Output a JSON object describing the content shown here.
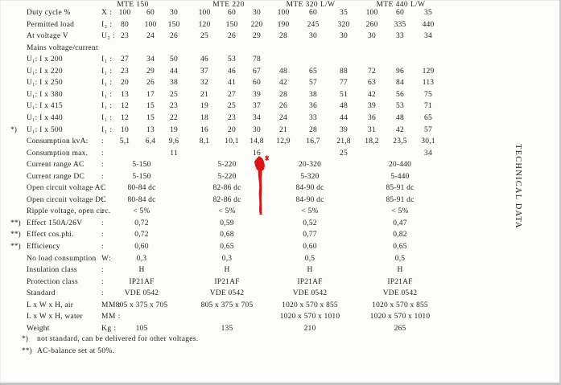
{
  "sidebar": {
    "label": "TECHNICAL DATA"
  },
  "table": {
    "groups": [
      "MTE 150",
      "MTE 220",
      "MTE 320 L/W",
      "MTE 440 L/W"
    ],
    "rows": [
      {
        "label": "Duty cycle %",
        "symbol": "X :",
        "cols": [
          "100",
          "60",
          "30",
          "100",
          "60",
          "30",
          "100",
          "60",
          "35",
          "100",
          "60",
          "35"
        ]
      },
      {
        "label": "Permitted load",
        "symbol": "I₂ :",
        "cols": [
          "80",
          "100",
          "150",
          "120",
          "150",
          "220",
          "190",
          "245",
          "320",
          "260",
          "335",
          "440"
        ]
      },
      {
        "label": "At voltage V",
        "symbol": "U₂ :",
        "cols": [
          "23",
          "24",
          "26",
          "25",
          "26",
          "29",
          "28",
          "30",
          "30",
          "30",
          "33",
          "34"
        ]
      },
      {
        "label": "Mains voltage/current",
        "symbol": ""
      },
      {
        "label": "U₁: I x 200",
        "symbol": "I₁ :",
        "cols": [
          "27",
          "34",
          "50",
          "46",
          "53",
          "78",
          "",
          "",
          "",
          "",
          "",
          ""
        ]
      },
      {
        "label": "U₁: I x 220",
        "symbol": "I₁ :",
        "cols": [
          "23",
          "29",
          "44",
          "37",
          "46",
          "67",
          "48",
          "65",
          "88",
          "72",
          "96",
          "129"
        ]
      },
      {
        "label": "U₁: I x 250",
        "symbol": "I₁ :",
        "cols": [
          "20",
          "26",
          "38",
          "32",
          "41",
          "60",
          "42",
          "57",
          "77",
          "63",
          "84",
          "113"
        ]
      },
      {
        "label": "U₁: I x 380",
        "symbol": "I₁ :",
        "cols": [
          "13",
          "17",
          "25",
          "21",
          "27",
          "39",
          "28",
          "38",
          "51",
          "42",
          "56",
          "75"
        ]
      },
      {
        "label": "U₁: I x 415",
        "symbol": "I₁ :",
        "cols": [
          "12",
          "15",
          "23",
          "19",
          "25",
          "37",
          "26",
          "36",
          "48",
          "39",
          "53",
          "71"
        ]
      },
      {
        "label": "U₁: I x 440",
        "symbol": "I₁ :",
        "cols": [
          "12",
          "15",
          "22",
          "18",
          "23",
          "34",
          "24",
          "33",
          "44",
          "36",
          "48",
          "65"
        ]
      },
      {
        "prefix": "*)",
        "label": "U₁: I x 500",
        "symbol": "I₁ :",
        "cols": [
          "10",
          "13",
          "19",
          "16",
          "20",
          "30",
          "21",
          "28",
          "39",
          "31",
          "42",
          "57"
        ]
      },
      {
        "label": "Consumption kvA:",
        "symbol": ":",
        "cols": [
          "5,1",
          "6,4",
          "9,6",
          "8,1",
          "10,1",
          "14,8",
          "12,9",
          "16,7",
          "21,8",
          "18,2",
          "23,5",
          "30,1"
        ]
      },
      {
        "label": "Consumption max.",
        "symbol": ":",
        "cols": [
          "",
          "",
          "11",
          "",
          "",
          "16",
          "",
          "",
          "25",
          "",
          "",
          "34"
        ]
      },
      {
        "label": "Current range AC",
        "symbol": ":",
        "groupvals": [
          "5-150",
          "5-220",
          "20-320",
          "20-440"
        ]
      },
      {
        "label": "Current range DC",
        "symbol": ":",
        "groupvals": [
          "5-150",
          "5-220",
          "5-320",
          "5-440"
        ]
      },
      {
        "label": "Open circuit voltage AC",
        "symbol": ":",
        "groupvals": [
          "80-84 dc",
          "82-86 dc",
          "84-90 dc",
          "85-91 dc"
        ]
      },
      {
        "label": "Open circuit voltage DC",
        "symbol": ":",
        "groupvals": [
          "80-84 dc",
          "82-86 dc",
          "84-90 dc",
          "85-91 dc"
        ]
      },
      {
        "label": "Ripple voltage, open circ.",
        "symbol": ":",
        "groupvals": [
          "< 5%",
          "< 5%",
          "< 5%",
          "< 5%"
        ]
      },
      {
        "prefix": "**)",
        "label": "Effect 150A/26V",
        "symbol": ":",
        "groupvals": [
          "0,72",
          "0,59",
          "0,52",
          "0,47"
        ]
      },
      {
        "prefix": "**)",
        "label": "Effect cos.phi.",
        "symbol": ":",
        "groupvals": [
          "0,72",
          "0,68",
          "0,77",
          "0,82"
        ]
      },
      {
        "prefix": "**)",
        "label": "Efficiency",
        "symbol": ":",
        "groupvals": [
          "0,60",
          "0,65",
          "0,60",
          "0,65"
        ]
      },
      {
        "label": "No load consumption",
        "symbol": "W:",
        "groupvals": [
          "0,3",
          "0,3",
          "0,5",
          "0,5"
        ]
      },
      {
        "label": "Insulation class",
        "symbol": ":",
        "groupvals": [
          "H",
          "H",
          "H",
          "H"
        ]
      },
      {
        "label": "Protection class",
        "symbol": ":",
        "groupvals": [
          "IP21AF",
          "IP21AF",
          "IP21AF",
          "IP21AF"
        ]
      },
      {
        "label": "Standard",
        "symbol": ":",
        "groupvals": [
          "VDE 0542",
          "VDE 0542",
          "VDE 0542",
          "VDE 0542"
        ]
      },
      {
        "label": "L x W x H, air",
        "symbol": "MM :",
        "groupvals": [
          "805 x 375 x 705",
          "805 x 375 x 705",
          "1020 x 570 x 855",
          "1020 x 570 x 855"
        ]
      },
      {
        "label": "L x W x H, water",
        "symbol": "MM :",
        "groupvals": [
          "",
          "",
          "1020 x 570 x 1010",
          "1020 x 570 x 1010"
        ]
      },
      {
        "label": "Weight",
        "symbol": "Kg :",
        "groupvals": [
          "105",
          "135",
          "210",
          "265"
        ]
      }
    ]
  },
  "footnotes": [
    {
      "marker": "*)",
      "text": "not standard, can be delivered for other voltages."
    },
    {
      "marker": "**)",
      "text": "AC-balance set at 50%."
    }
  ],
  "annotation": {
    "description": "hand-drawn red arrow pointing up at Consumption max. 16",
    "color": "#dc1414"
  }
}
